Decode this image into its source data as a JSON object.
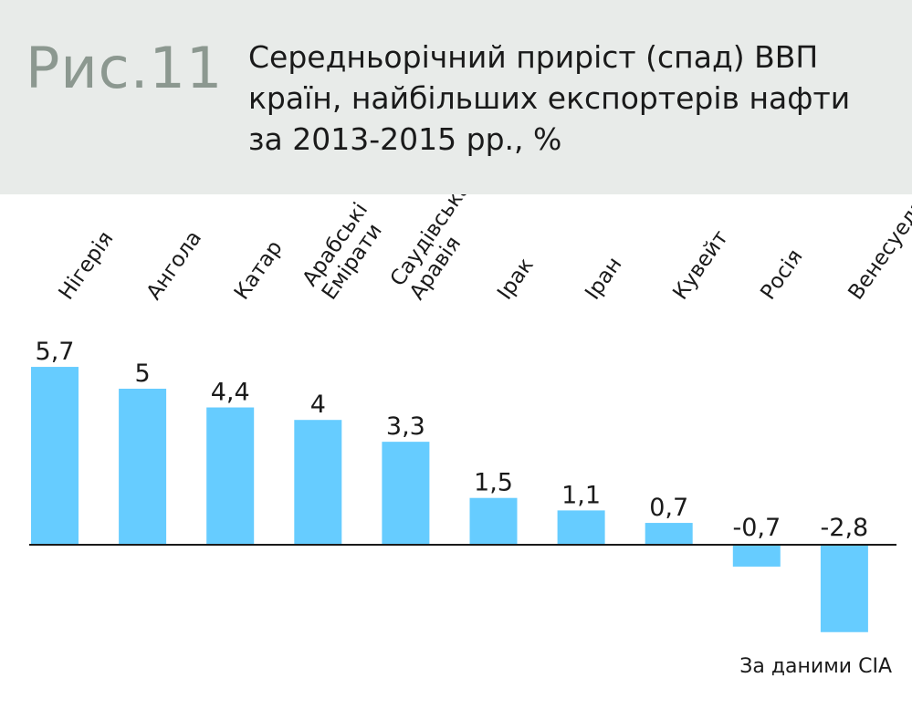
{
  "header": {
    "figure_label": "Рис.11",
    "title_lines": [
      "Середньорічний приріст (спад) ВВП",
      "країн, найбільших експортерів нафти",
      "за 2013-2015 рр., %"
    ]
  },
  "source": "За даними CIA",
  "colors": {
    "bar": "#66ccff",
    "header_bg": "#e8ebe9",
    "label_gray": "#8c9890",
    "axis": "#1a1a1a"
  },
  "chart_data": {
    "type": "bar",
    "title": "Середньорічний приріст (спад) ВВП країн, найбільших експортерів нафти за 2013-2015 рр., %",
    "categories": [
      [
        "Нігерія"
      ],
      [
        "Ангола"
      ],
      [
        "Катар"
      ],
      [
        "Арабські",
        "Емірати"
      ],
      [
        "Саудівська",
        "Аравія"
      ],
      [
        "Ірак"
      ],
      [
        "Іран"
      ],
      [
        "Кувейт"
      ],
      [
        "Росія"
      ],
      [
        "Венесуела"
      ]
    ],
    "values": [
      5.7,
      5,
      4.4,
      4,
      3.3,
      1.5,
      1.1,
      0.7,
      -0.7,
      -2.8
    ],
    "value_labels": [
      "5,7",
      "5",
      "4,4",
      "4",
      "3,3",
      "1,5",
      "1,1",
      "0,7",
      "-0,7",
      "-2,8"
    ],
    "xlabel": "",
    "ylabel": "",
    "ylim": [
      -2.8,
      5.7
    ],
    "grid": false
  }
}
